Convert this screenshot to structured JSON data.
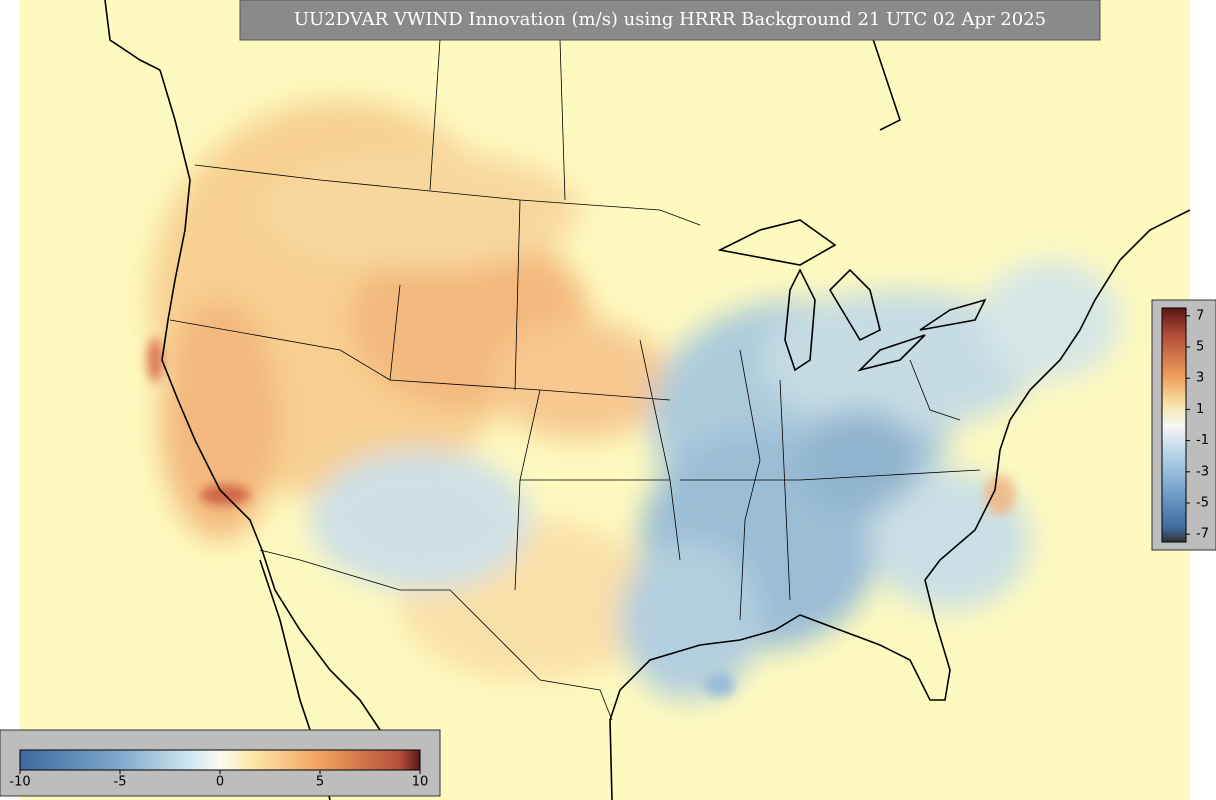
{
  "title": "UU2DVAR VWIND Innovation (m/s) using HRRR Background 21 UTC 02 Apr 2025",
  "vertical_colorbar": {
    "ticks": [
      7,
      5,
      3,
      1,
      -1,
      -3,
      -5,
      -7
    ],
    "range": [
      -7.5,
      7.5
    ]
  },
  "horizontal_colorbar": {
    "ticks": [
      -10,
      -5,
      0,
      5,
      10
    ],
    "range": [
      -10,
      10
    ]
  }
}
